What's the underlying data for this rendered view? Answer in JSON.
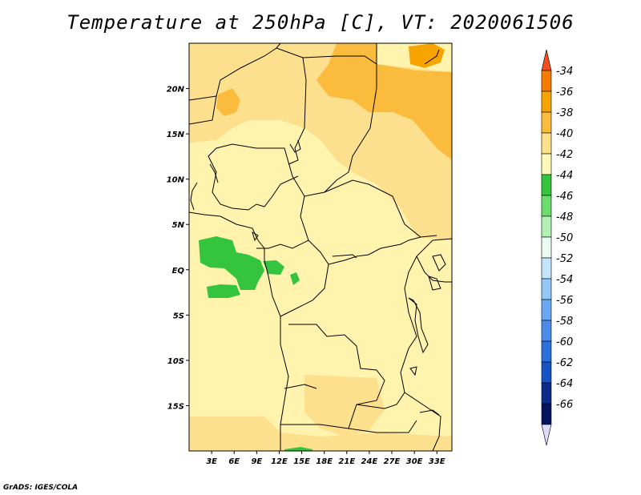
{
  "title": "Temperature at 250hPa [C], VT: 2020061506",
  "credit": "GrADS: IGES/COLA",
  "map": {
    "lon_range": [
      0,
      35
    ],
    "lat_range": [
      -20,
      25
    ],
    "lat_ticks": [
      {
        "value": 20,
        "label": "20N"
      },
      {
        "value": 15,
        "label": "15N"
      },
      {
        "value": 10,
        "label": "10N"
      },
      {
        "value": 5,
        "label": "5N"
      },
      {
        "value": 0,
        "label": "EQ"
      },
      {
        "value": -5,
        "label": "5S"
      },
      {
        "value": -10,
        "label": "10S"
      },
      {
        "value": -15,
        "label": "15S"
      }
    ],
    "lon_ticks": [
      {
        "value": 3,
        "label": "3E"
      },
      {
        "value": 6,
        "label": "6E"
      },
      {
        "value": 9,
        "label": "9E"
      },
      {
        "value": 12,
        "label": "12E"
      },
      {
        "value": 15,
        "label": "15E"
      },
      {
        "value": 18,
        "label": "18E"
      },
      {
        "value": 21,
        "label": "21E"
      },
      {
        "value": 24,
        "label": "24E"
      },
      {
        "value": 27,
        "label": "27E"
      },
      {
        "value": 30,
        "label": "30E"
      },
      {
        "value": 33,
        "label": "33E"
      }
    ]
  },
  "colorbar": {
    "levels": [
      "-34",
      "-36",
      "-38",
      "-40",
      "-42",
      "-44",
      "-46",
      "-48",
      "-50",
      "-52",
      "-54",
      "-56",
      "-58",
      "-60",
      "-62",
      "-64",
      "-66"
    ],
    "colors": [
      "#f0501e",
      "#f57c00",
      "#f8a400",
      "#fbbc3c",
      "#fde08c",
      "#fff8b8",
      "#34c43e",
      "#6cdc6c",
      "#b4f0b4",
      "#e8fcf0",
      "#c4e4fc",
      "#94c8f8",
      "#6aa8f4",
      "#4c8ce8",
      "#2c70dc",
      "#1654c4",
      "#0c2c8c",
      "#041460",
      "#dcdcf8"
    ]
  }
}
